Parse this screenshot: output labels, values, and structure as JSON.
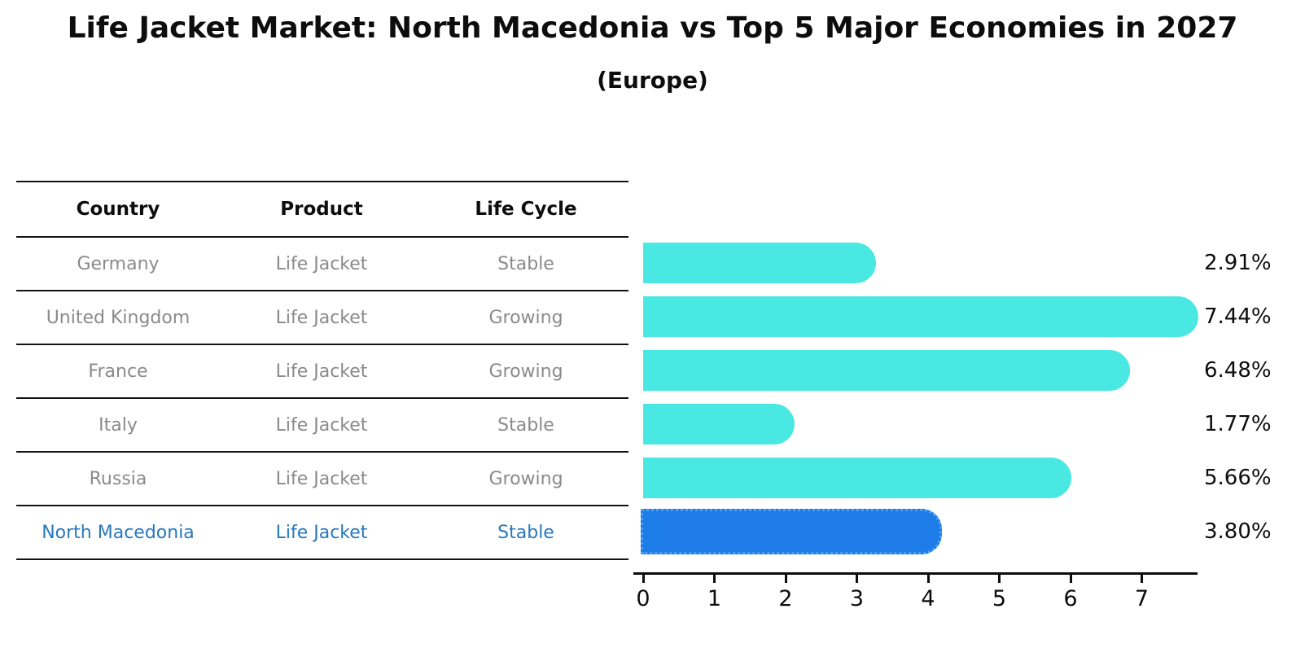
{
  "title": "Life Jacket Market: North Macedonia vs Top 5 Major Economies in 2027",
  "subtitle": "(Europe)",
  "table": {
    "headers": [
      "Country",
      "Product",
      "Life Cycle"
    ],
    "rows": [
      {
        "country": "Germany",
        "product": "Life Jacket",
        "life_cycle": "Stable",
        "highlight": false
      },
      {
        "country": "United Kingdom",
        "product": "Life Jacket",
        "life_cycle": "Growing",
        "highlight": false
      },
      {
        "country": "France",
        "product": "Life Jacket",
        "life_cycle": "Growing",
        "highlight": false
      },
      {
        "country": "Italy",
        "product": "Life Jacket",
        "life_cycle": "Stable",
        "highlight": false
      },
      {
        "country": "Russia",
        "product": "Life Jacket",
        "life_cycle": "Growing",
        "highlight": false
      },
      {
        "country": "North Macedonia",
        "product": "Life Jacket",
        "life_cycle": "Stable",
        "highlight": true
      }
    ]
  },
  "chart_data": {
    "type": "bar",
    "orientation": "horizontal",
    "title": "Life Jacket Market: North Macedonia vs Top 5 Major Economies in 2027",
    "subtitle": "(Europe)",
    "categories": [
      "Germany",
      "United Kingdom",
      "France",
      "Italy",
      "Russia",
      "North Macedonia"
    ],
    "values": [
      2.91,
      7.44,
      6.48,
      1.77,
      5.66,
      3.8
    ],
    "value_labels": [
      "2.91%",
      "7.44%",
      "6.48%",
      "1.77%",
      "5.66%",
      "3.80%"
    ],
    "x_ticks": [
      "0",
      "1",
      "2",
      "3",
      "4",
      "5",
      "6",
      "7"
    ],
    "xlim": [
      0,
      7.8
    ],
    "grid": false,
    "legend": "none",
    "highlight_category": "North Macedonia",
    "bar_color": "#4ae8e3",
    "highlight_bar_color": "#1d7ce8",
    "highlight_border_color": "#4f9ef0",
    "highlight_text_color": "#2878be"
  },
  "colors": {
    "background": "#ffffff",
    "bar_cyan": "#4ae8e3",
    "bar_blue": "#1d7ce8",
    "table_text": "#8a8a8a",
    "heading_text": "#0d0d0d",
    "line": "#141414",
    "highlight_text": "#2878be"
  }
}
